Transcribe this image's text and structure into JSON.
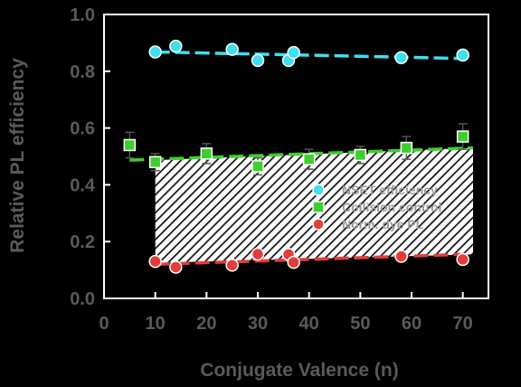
{
  "chart_data": {
    "type": "scatter",
    "xlabel": "Conjugate Valence (n)",
    "ylabel": "Relative PL efficiency",
    "xlim": [
      0,
      75
    ],
    "ylim": [
      0.0,
      1.0
    ],
    "x_ticks": [
      "0",
      "10",
      "20",
      "30",
      "40",
      "50",
      "60",
      "70"
    ],
    "y_ticks": [
      "0.0",
      "0.2",
      "0.4",
      "0.6",
      "0.8",
      "1.0"
    ],
    "background": "#000000",
    "axis_color": "#ffffff",
    "text_color": "#5a5a5a",
    "grid": false,
    "legend_position": "lower-right",
    "series": [
      {
        "name": "NSET efficiency",
        "marker": "circle",
        "color": "#3ee0ee",
        "x": [
          10,
          14,
          25,
          30,
          36,
          37,
          58,
          70
        ],
        "y": [
          0.868,
          0.888,
          0.877,
          0.838,
          0.838,
          0.866,
          0.848,
          0.857
        ],
        "fit": {
          "x": [
            10,
            70
          ],
          "y": [
            0.868,
            0.845
          ],
          "color": "#3ee0ee"
        }
      },
      {
        "name": "Collision control",
        "marker": "square",
        "color": "#3ecf2e",
        "x": [
          5,
          10,
          20,
          30,
          40,
          50,
          59,
          70
        ],
        "y": [
          0.54,
          0.48,
          0.51,
          0.465,
          0.49,
          0.505,
          0.53,
          0.57
        ],
        "y_err": [
          0.045,
          0.03,
          0.035,
          0.03,
          0.035,
          0.03,
          0.04,
          0.045
        ],
        "fit": {
          "x": [
            5,
            72
          ],
          "y": [
            0.487,
            0.53
          ],
          "color": "#3ecf2e"
        }
      },
      {
        "name": "Norm. dye PL",
        "marker": "circle",
        "color": "#e33c3c",
        "x": [
          10,
          14,
          25,
          30,
          36,
          37,
          58,
          70
        ],
        "y": [
          0.13,
          0.11,
          0.117,
          0.156,
          0.155,
          0.127,
          0.148,
          0.137
        ],
        "fit": {
          "x": [
            10,
            70
          ],
          "y": [
            0.12,
            0.155
          ],
          "color": "#e33c3c"
        }
      }
    ],
    "hatched_region": {
      "x": [
        10,
        72
      ],
      "y_low": [
        0.125,
        0.155
      ],
      "y_high": [
        0.487,
        0.53
      ]
    }
  }
}
